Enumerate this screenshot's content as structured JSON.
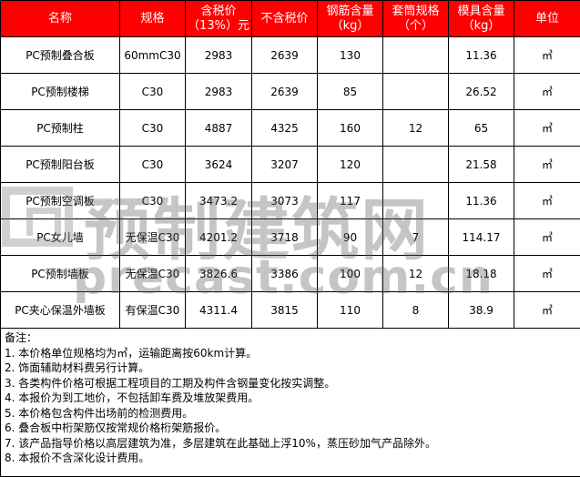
{
  "headers": [
    "名称",
    "规格",
    "含税价\n（13%）元",
    "不含税价",
    "钢筋含量\n（kg）",
    "套筒规格\n（个）",
    "模具含量\n（kg）",
    "单位"
  ],
  "rows": [
    [
      "PC预制叠合板",
      "60mmC30",
      "2983",
      "2639",
      "130",
      "",
      "11.36",
      "㎥"
    ],
    [
      "PC预制楼梯",
      "C30",
      "2983",
      "2639",
      "85",
      "",
      "26.52",
      "㎥"
    ],
    [
      "PC预制柱",
      "C30",
      "4887",
      "4325",
      "160",
      "12",
      "65",
      "㎥"
    ],
    [
      "PC预制阳台板",
      "C30",
      "3624",
      "3207",
      "120",
      "",
      "21.58",
      "㎥"
    ],
    [
      "PC预制空调板",
      "C30",
      "3473.2",
      "3073",
      "117",
      "",
      "11.36",
      "㎥"
    ],
    [
      "PC女儿墙",
      "无保温C30",
      "4201.2",
      "3718",
      "90",
      "7",
      "114.17",
      "㎥"
    ],
    [
      "PC预制墙板",
      "无保温C30",
      "3826.6",
      "3386",
      "100",
      "12",
      "18.18",
      "㎥"
    ],
    [
      "PC夹心保温外墙板",
      "有保温C30",
      "4311.4",
      "3815",
      "110",
      "8",
      "38.9",
      "㎥"
    ]
  ],
  "notes": {
    "title": "备注：",
    "items": [
      "1. 本价格单位规格均为㎥，运输距离按60km计算。",
      "2. 饰面辅助材料费另行计算。",
      "3. 各类构件价格可根据工程项目的工期及构件含钢量变化按实调整。",
      "4. 本报价为到工地价，不包括卸车费及堆放架费用。",
      "5. 本价格包含构件出场前的检测费用。",
      "6. 叠合板中桁架筋仅按常规价格桁架筋报价。",
      "7. 该产品指导价格以高层建筑为准，多层建筑在此基础上浮10%，蒸压砂加气产品除外。",
      "8. 本报价不含深化设计费用。"
    ]
  },
  "watermark": {
    "cn": "预制建筑网",
    "en": "precast.com.cn"
  },
  "colors": {
    "header_bg": "#ff0000",
    "header_text": "#ffffff"
  }
}
